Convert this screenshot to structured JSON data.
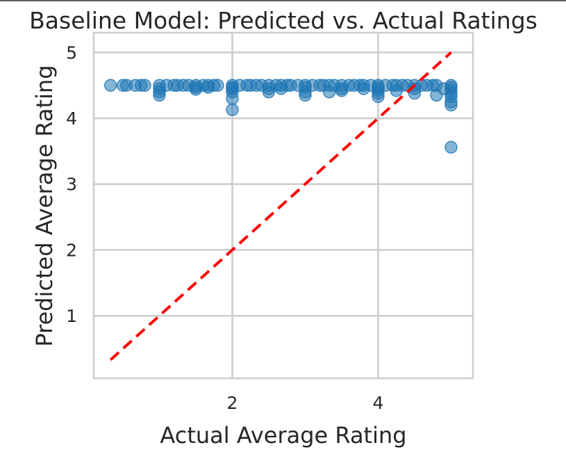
{
  "chart_data": {
    "type": "scatter",
    "title": "Baseline Model: Predicted vs. Actual Ratings",
    "xlabel": "Actual Average Rating",
    "ylabel": "Predicted Average Rating",
    "xlim": [
      0.1,
      5.3
    ],
    "ylim": [
      0.05,
      5.3
    ],
    "xticks": [
      2,
      4
    ],
    "yticks": [
      1,
      2,
      3,
      4,
      5
    ],
    "grid": true,
    "legend": "none",
    "colors": {
      "points": "#1f77b4",
      "reference_line": "#ff0000",
      "grid": "#cccccc",
      "text": "#262626"
    },
    "reference_line": {
      "style": "dashed",
      "x": [
        0.33,
        5.0
      ],
      "y": [
        0.33,
        5.0
      ]
    },
    "series": [
      {
        "x": [
          0.33,
          0.5,
          0.55,
          0.67,
          0.75,
          0.8,
          1.0,
          1.0,
          1.0,
          1.0,
          1.1,
          1.2,
          1.25,
          1.33,
          1.4,
          1.5,
          1.5,
          1.5,
          1.6,
          1.67,
          1.67,
          1.75,
          1.8,
          2.0,
          2.0,
          2.0,
          2.0,
          2.0,
          2.0,
          2.1,
          2.2,
          2.25,
          2.33,
          2.4,
          2.5,
          2.5,
          2.5,
          2.6,
          2.67,
          2.67,
          2.75,
          2.8,
          2.9,
          3.0,
          3.0,
          3.0,
          3.0,
          3.1,
          3.2,
          3.25,
          3.33,
          3.33,
          3.4,
          3.5,
          3.5,
          3.5,
          3.6,
          3.67,
          3.75,
          3.8,
          3.8,
          3.9,
          4.0,
          4.0,
          4.0,
          4.0,
          4.0,
          4.1,
          4.2,
          4.25,
          4.25,
          4.33,
          4.4,
          4.5,
          4.5,
          4.5,
          4.6,
          4.67,
          4.75,
          4.8,
          4.8,
          4.9,
          5.0,
          5.0,
          5.0,
          5.0,
          5.0,
          5.0,
          5.0,
          5.0
        ],
        "y": [
          4.5,
          4.5,
          4.5,
          4.5,
          4.5,
          4.5,
          4.5,
          4.45,
          4.4,
          4.35,
          4.5,
          4.5,
          4.5,
          4.5,
          4.5,
          4.5,
          4.47,
          4.44,
          4.5,
          4.5,
          4.47,
          4.5,
          4.5,
          4.5,
          4.47,
          4.45,
          4.4,
          4.3,
          4.13,
          4.5,
          4.5,
          4.5,
          4.5,
          4.5,
          4.5,
          4.45,
          4.4,
          4.5,
          4.5,
          4.45,
          4.5,
          4.5,
          4.5,
          4.5,
          4.47,
          4.4,
          4.35,
          4.5,
          4.5,
          4.5,
          4.5,
          4.4,
          4.5,
          4.5,
          4.45,
          4.42,
          4.5,
          4.5,
          4.5,
          4.5,
          4.45,
          4.5,
          4.5,
          4.47,
          4.43,
          4.38,
          4.33,
          4.5,
          4.5,
          4.5,
          4.42,
          4.5,
          4.5,
          4.5,
          4.45,
          4.38,
          4.5,
          4.5,
          4.5,
          4.5,
          4.35,
          4.45,
          4.5,
          4.47,
          4.43,
          4.38,
          4.33,
          4.25,
          4.2,
          3.56
        ]
      }
    ]
  }
}
